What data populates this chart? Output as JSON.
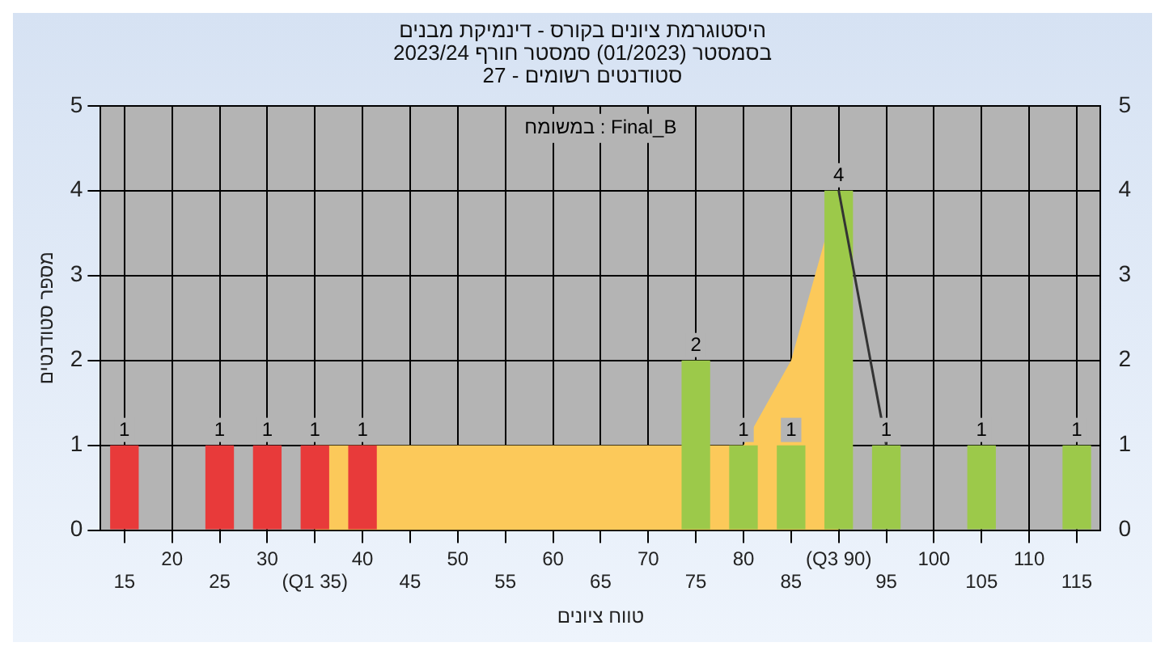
{
  "chart_data": {
    "type": "bar",
    "title": "היסטוגרמת ציונים בקורס - דינמיקת מבנים",
    "subtitle": "בסמסטר  (01/2023)  סמסטר חורף 2023/24",
    "annotations": [
      "סטודנטים רשומים - 27",
      "במשומח : Final_B"
    ],
    "xlabel": "טווח ציונים",
    "ylabel": "מספר סטודנטים",
    "categories": [
      "15",
      "20",
      "25",
      "30",
      "(Q1 35)",
      "40",
      "45",
      "50",
      "55",
      "60",
      "65",
      "70",
      "75",
      "80",
      "85",
      "(Q3 90)",
      "95",
      "100",
      "105",
      "110",
      "115"
    ],
    "series": [
      {
        "type": "area",
        "color": "#fcc95a",
        "values": [
          null,
          null,
          null,
          null,
          1,
          1,
          1,
          1,
          1,
          1,
          1,
          1,
          null,
          1,
          2,
          4,
          null,
          null,
          null,
          null,
          null
        ]
      },
      {
        "type": "line",
        "color": "#333333",
        "values": [
          null,
          null,
          null,
          null,
          null,
          null,
          null,
          null,
          null,
          null,
          null,
          null,
          null,
          null,
          null,
          4,
          1,
          null,
          null,
          null,
          null
        ]
      },
      {
        "colors": [
          "#e83a3a",
          "#e83a3a",
          "#e83a3a",
          "#e83a3a",
          "#e83a3a",
          "#e83a3a",
          "#e83a3a",
          "#e83a3a",
          "#e83a3a",
          "#e83a3a",
          "#e83a3a",
          "#e83a3a",
          "#9cc94a",
          "#9cc94a",
          "#9cc94a",
          "#9cc94a",
          "#9cc94a",
          "#9cc94a",
          "#9cc94a",
          "#9cc94a",
          "#9cc94a"
        ],
        "values": [
          1,
          0,
          1,
          1,
          1,
          1,
          0,
          0,
          0,
          0,
          0,
          0,
          2,
          1,
          1,
          4,
          1,
          0,
          1,
          0,
          1
        ],
        "value_labels": [
          "1",
          null,
          "1",
          "1",
          "1",
          "1",
          null,
          null,
          null,
          null,
          null,
          null,
          "2",
          "1",
          "1",
          "4",
          "1",
          null,
          "1",
          null,
          "1"
        ]
      }
    ],
    "ylim": [
      0,
      5
    ],
    "yticks": [
      0,
      1,
      2,
      3,
      4,
      5
    ],
    "y2lim": [
      0,
      5
    ],
    "y2ticks": [
      0,
      1,
      2,
      3,
      4,
      5
    ],
    "grid": true,
    "legend": false
  }
}
